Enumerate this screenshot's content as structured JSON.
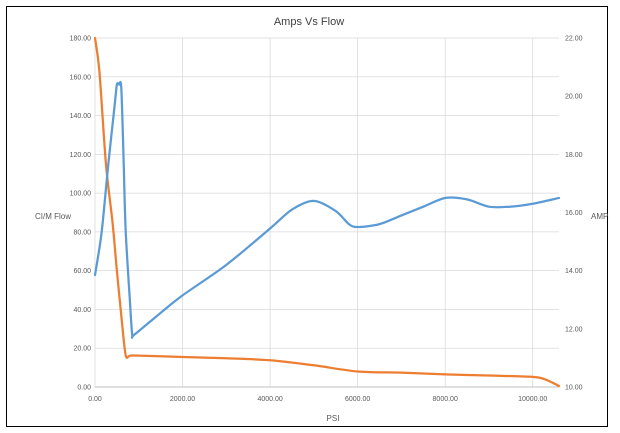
{
  "chart_data": {
    "type": "line",
    "title": "Amps Vs Flow",
    "xlabel": "PSI",
    "ylabel": "CI/M Flow",
    "y2label": "AMPS",
    "xlim": [
      0,
      10600
    ],
    "ylim": [
      0,
      180
    ],
    "y2lim": [
      10,
      22
    ],
    "x_ticks": [
      "0.00",
      "2000.00",
      "4000.00",
      "6000.00",
      "8000.00",
      "10000.00"
    ],
    "x_tick_values": [
      0,
      2000,
      4000,
      6000,
      8000,
      10000
    ],
    "y_ticks": [
      "0.00",
      "20.00",
      "40.00",
      "60.00",
      "80.00",
      "100.00",
      "120.00",
      "140.00",
      "160.00",
      "180.00"
    ],
    "y_tick_values": [
      0,
      20,
      40,
      60,
      80,
      100,
      120,
      140,
      160,
      180
    ],
    "y2_ticks": [
      "10.00",
      "12.00",
      "14.00",
      "16.00",
      "18.00",
      "20.00",
      "22.00"
    ],
    "y2_tick_values": [
      10,
      12,
      14,
      16,
      18,
      20,
      22
    ],
    "grid": true,
    "legend": "none",
    "series": [
      {
        "color": "#ED7D31",
        "axis": "left",
        "x": [
          0,
          100,
          250,
          400,
          500,
          600,
          700,
          800,
          1000,
          2000,
          3000,
          4000,
          5000,
          6000,
          7000,
          8000,
          9000,
          10000,
          10300,
          10600
        ],
        "y": [
          180,
          163,
          115,
          85,
          60,
          37,
          16.5,
          16.2,
          16.2,
          15.5,
          14.8,
          13.8,
          11.2,
          8,
          7.4,
          6.5,
          5.9,
          5.2,
          3.8,
          0.5
        ]
      },
      {
        "color": "#5B9BD5",
        "axis": "right",
        "x": [
          0,
          150,
          300,
          450,
          500,
          550,
          600,
          650,
          700,
          800,
          850,
          900,
          1500,
          2000,
          3000,
          4000,
          4500,
          5000,
          5500,
          5800,
          6000,
          6500,
          7000,
          7500,
          8000,
          8500,
          9000,
          9500,
          10000,
          10600
        ],
        "y": [
          13.85,
          15.3,
          17.6,
          19.7,
          20.4,
          20.4,
          20.3,
          18,
          15.4,
          12.9,
          11.8,
          11.8,
          12.55,
          13.15,
          14.2,
          15.45,
          16.1,
          16.4,
          16.05,
          15.6,
          15.5,
          15.6,
          15.9,
          16.2,
          16.5,
          16.45,
          16.2,
          16.2,
          16.3,
          16.5
        ]
      }
    ]
  }
}
